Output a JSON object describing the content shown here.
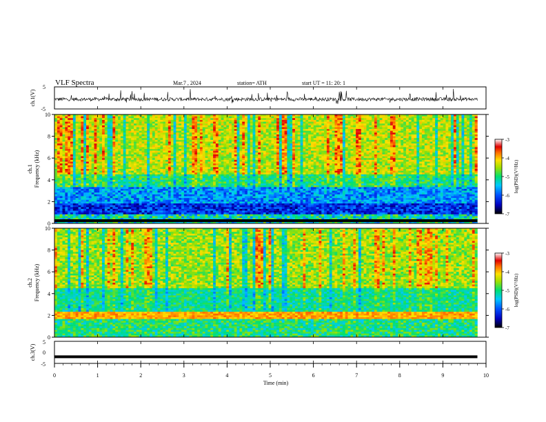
{
  "header": {
    "title": "VLF  Spectra",
    "date": "Mar.7  , 2024",
    "station": "station= ATH",
    "start": "start  UT  =   11: 20: 1"
  },
  "chart_data": [
    {
      "type": "line",
      "ylabel": "ch.1(V)",
      "ylim": [
        -5,
        5
      ],
      "yticks": [
        "5",
        "-5"
      ],
      "xlim": [
        0,
        10
      ],
      "description_ref": "noisy waveform around -1 V with spikes"
    },
    {
      "type": "heatmap",
      "ylabel_line1": "ch.1",
      "ylabel_line2": "Frequency  (kHz)",
      "ylim": [
        0,
        10
      ],
      "yticks": [
        "0",
        "2",
        "4",
        "6",
        "8",
        "10"
      ],
      "xlim": [
        0,
        10
      ],
      "colorbar": {
        "label": "log(PSD)(V²/Hz)",
        "ticks": [
          "-3",
          "-4",
          "-5",
          "-6",
          "-7"
        ],
        "range": [
          -7,
          -3
        ]
      }
    },
    {
      "type": "heatmap",
      "ylabel_line1": "ch.2",
      "ylabel_line2": "Frequency  (kHz)",
      "ylim": [
        0,
        10
      ],
      "yticks": [
        "0",
        "2",
        "4",
        "6",
        "8",
        "10"
      ],
      "xlim": [
        0,
        10
      ],
      "colorbar": {
        "label": "log(PSD)(V²/Hz)",
        "ticks": [
          "-3",
          "-4",
          "-5",
          "-6",
          "-7"
        ],
        "range": [
          -7,
          -3
        ]
      }
    },
    {
      "type": "line",
      "ylabel": "ch.3(V)",
      "ylim": [
        -5,
        5
      ],
      "yticks": [
        "5",
        "0",
        "-5"
      ],
      "xlim": [
        0,
        10
      ],
      "level": -2
    }
  ],
  "xaxis": {
    "label": "Time  (min)",
    "ticks": [
      "0",
      "1",
      "2",
      "3",
      "4",
      "5",
      "6",
      "7",
      "8",
      "9",
      "10"
    ],
    "data_end": 9.8
  }
}
